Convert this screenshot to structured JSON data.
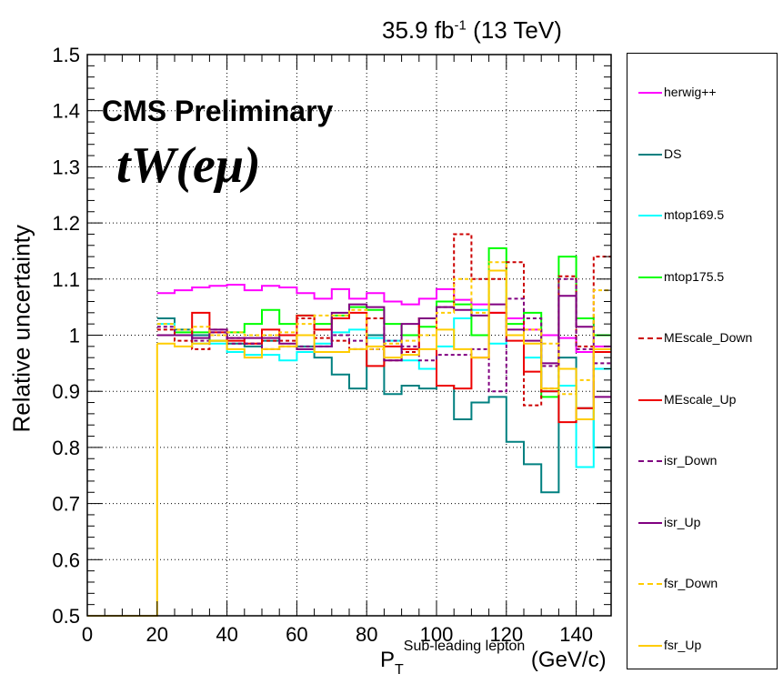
{
  "header": {
    "lumi_value": "35.9 fb",
    "lumi_exp": "-1",
    "energy": " (13 TeV)",
    "cms_label": "CMS Preliminary",
    "process_label": "tW(eμ)"
  },
  "chart_data": {
    "type": "line",
    "style": "step-histogram",
    "xlabel_main": "P",
    "xlabel_sub": "T",
    "xlabel_sup": "Sub-leading lepton",
    "xlabel_unit": " (GeV/c)",
    "ylabel": "Relative uncertainty",
    "xlim": [
      0,
      150
    ],
    "ylim": [
      0.5,
      1.5
    ],
    "x_ticks": [
      0,
      20,
      40,
      60,
      80,
      100,
      120,
      140
    ],
    "y_ticks": [
      0.5,
      0.6,
      0.7,
      0.8,
      0.9,
      1,
      1.1,
      1.2,
      1.3,
      1.4,
      1.5
    ],
    "grid": true,
    "legend_position": "right",
    "bin_edges": [
      20,
      25,
      30,
      35,
      40,
      45,
      50,
      55,
      60,
      65,
      70,
      75,
      80,
      85,
      90,
      95,
      100,
      105,
      110,
      115,
      120,
      125,
      130,
      135,
      140,
      145,
      150
    ],
    "series": [
      {
        "name": "herwig++",
        "color": "#ff00ff",
        "dash": false,
        "values": [
          1.075,
          1.08,
          1.085,
          1.088,
          1.09,
          1.08,
          1.088,
          1.085,
          1.075,
          1.065,
          1.082,
          1.065,
          1.075,
          1.06,
          1.055,
          1.065,
          1.082,
          1.063,
          1.055,
          1.04,
          1.03,
          1.01,
          1.0,
          0.995,
          0.97,
          0.98
        ]
      },
      {
        "name": "DS",
        "color": "#008080",
        "dash": false,
        "values": [
          1.03,
          1.01,
          1.0,
          0.99,
          0.985,
          0.98,
          0.99,
          1.0,
          0.98,
          0.96,
          0.93,
          0.905,
          1.0,
          0.895,
          0.91,
          0.905,
          0.91,
          0.85,
          0.88,
          0.89,
          0.81,
          0.77,
          0.72,
          0.96,
          0.87,
          0.8
        ]
      },
      {
        "name": "mtop169.5",
        "color": "#00ffff",
        "dash": false,
        "values": [
          1.02,
          1.0,
          0.985,
          0.985,
          0.97,
          0.965,
          0.965,
          0.955,
          0.97,
          0.985,
          1.005,
          1.01,
          0.995,
          0.99,
          0.955,
          0.94,
          0.98,
          1.03,
          1.045,
          0.985,
          1.0,
          0.96,
          0.9,
          0.91,
          0.765,
          0.94
        ]
      },
      {
        "name": "mtop175.5",
        "color": "#00ff00",
        "dash": false,
        "values": [
          1.0,
          1.005,
          1.005,
          0.99,
          1.005,
          1.02,
          1.045,
          1.02,
          1.035,
          1.02,
          1.035,
          1.05,
          1.045,
          1.02,
          1.0,
          1.015,
          1.06,
          1.055,
          1.0,
          1.155,
          1.02,
          1.04,
          0.89,
          1.14,
          1.03,
          1.0
        ]
      },
      {
        "name": "MEscale_Down",
        "color": "#cc0000",
        "dash": true,
        "values": [
          1.01,
          0.99,
          0.975,
          1.01,
          0.995,
          0.985,
          0.99,
          0.99,
          1.03,
          0.995,
          0.99,
          0.975,
          1.03,
          0.955,
          0.97,
          1.03,
          1.05,
          1.18,
          1.1,
          1.1,
          1.13,
          0.875,
          0.905,
          1.105,
          0.98,
          1.14
        ]
      },
      {
        "name": "MEscale_Up",
        "color": "#ee0000",
        "dash": false,
        "values": [
          1.0,
          1.0,
          1.04,
          1.005,
          0.99,
          0.985,
          1.01,
          1.0,
          1.035,
          1.01,
          1.03,
          1.04,
          0.945,
          0.98,
          0.975,
          1.03,
          0.91,
          0.905,
          0.96,
          1.04,
          0.99,
          0.935,
          0.9,
          0.845,
          0.87,
          0.97
        ]
      },
      {
        "name": "isr_Down",
        "color": "#800080",
        "dash": true,
        "values": [
          1.015,
          1.0,
          0.99,
          1.005,
          0.985,
          0.985,
          0.975,
          0.98,
          0.98,
          0.98,
          1.0,
          0.99,
          0.975,
          0.99,
          0.98,
          0.955,
          0.965,
          0.965,
          0.975,
          0.9,
          1.065,
          1.03,
          0.945,
          1.1,
          0.975,
          0.95
        ]
      },
      {
        "name": "isr_Up",
        "color": "#800080",
        "dash": false,
        "values": [
          1.0,
          1.0,
          0.995,
          1.01,
          0.995,
          0.995,
          0.995,
          0.985,
          0.975,
          0.98,
          1.04,
          1.055,
          1.05,
          0.955,
          1.02,
          1.03,
          1.05,
          1.045,
          1.035,
          1.055,
          1.01,
          0.99,
          0.95,
          1.07,
          1.015,
          0.89
        ]
      },
      {
        "name": "fsr_Down",
        "color": "#ffcc00",
        "dash": true,
        "values": [
          1.02,
          1.01,
          1.015,
          1.0,
          1.005,
          1.0,
          1.0,
          1.005,
          1.02,
          1.035,
          1.035,
          1.045,
          0.975,
          0.985,
          0.99,
          1.0,
          1.04,
          1.1,
          1.04,
          1.13,
          1.0,
          1.01,
          0.985,
          0.895,
          0.92,
          1.08
        ]
      },
      {
        "name": "fsr_Up",
        "color": "#ffcc00",
        "dash": false,
        "values": [
          0.985,
          0.98,
          0.985,
          0.99,
          0.975,
          0.96,
          0.975,
          0.98,
          1.0,
          0.97,
          0.97,
          0.975,
          0.98,
          0.96,
          0.965,
          0.975,
          1.01,
          0.975,
          0.96,
          1.115,
          1.0,
          0.985,
          0.905,
          0.94,
          0.85,
          0.975
        ]
      }
    ],
    "fsr_up_low_edge": {
      "x_start": 0,
      "x_end": 20,
      "value": 0.5
    }
  }
}
